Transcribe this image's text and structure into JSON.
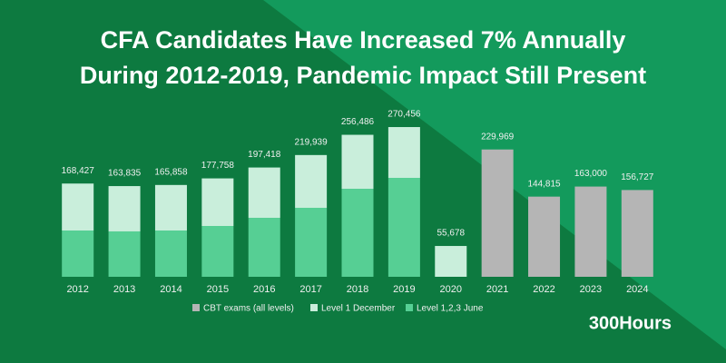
{
  "chart_data": {
    "type": "stacked-bar",
    "title": [
      "CFA Candidates Have Increased 7% Annually",
      "During 2012-2019, Pandemic Impact Still Present"
    ],
    "brand": "300Hours",
    "categories": [
      "2012",
      "2013",
      "2014",
      "2015",
      "2016",
      "2017",
      "2018",
      "2019",
      "2020",
      "2021",
      "2022",
      "2023",
      "2024"
    ],
    "series": [
      {
        "name": "Level 1,2,3 June",
        "color": "#56cf94",
        "values": [
          83600,
          82000,
          83600,
          91800,
          106500,
          124600,
          159000,
          178700,
          null,
          null,
          null,
          null,
          null
        ]
      },
      {
        "name": "Level 1 December",
        "color": "#c9eedb",
        "values": [
          84827,
          81835,
          82258,
          85958,
          90918,
          95339,
          97486,
          91756,
          55678,
          null,
          null,
          null,
          null
        ]
      },
      {
        "name": "CBT exams (all levels)",
        "color": "#b5b5b5",
        "values": [
          null,
          null,
          null,
          null,
          null,
          null,
          null,
          null,
          null,
          229969,
          144815,
          163000,
          156727
        ]
      }
    ],
    "totals": [
      168427,
      163835,
      165858,
      177758,
      197418,
      219939,
      256486,
      270456,
      55678,
      229969,
      144815,
      163000,
      156727
    ],
    "total_labels": [
      "168,427",
      "163,835",
      "165,858",
      "177,758",
      "197,418",
      "219,939",
      "256,486",
      "270,456",
      "55,678",
      "229,969",
      "144,815",
      "163,000",
      "156,727"
    ],
    "ylim": [
      0,
      300000
    ]
  }
}
